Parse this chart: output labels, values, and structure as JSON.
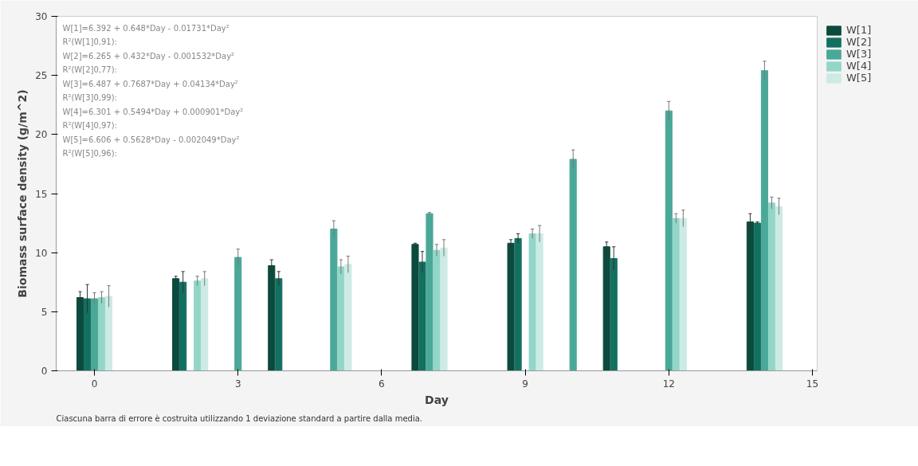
{
  "chart_data": {
    "type": "bar",
    "xlabel": "Day",
    "ylabel": "Biomass surface density (g/m^2)",
    "xlim": [
      -0.8,
      15.1
    ],
    "ylim": [
      0,
      30
    ],
    "xticks": [
      0,
      3,
      6,
      9,
      12,
      15
    ],
    "yticks": [
      0,
      5,
      10,
      15,
      20,
      25,
      30
    ],
    "grid": false,
    "legend": "right",
    "series": [
      {
        "name": "W[1]",
        "color": "#0b4a3c",
        "x": [
          0,
          2,
          4,
          7,
          9,
          11,
          14
        ],
        "values": [
          6.2,
          7.8,
          8.9,
          10.7,
          10.8,
          10.5,
          12.6
        ],
        "errors": [
          0.5,
          0.2,
          0.5,
          0.1,
          0.3,
          0.4,
          0.7
        ]
      },
      {
        "name": "W[2]",
        "color": "#137060",
        "x": [
          0,
          2,
          4,
          7,
          9,
          11,
          14
        ],
        "values": [
          6.1,
          7.5,
          7.8,
          9.2,
          11.2,
          9.5,
          12.5
        ],
        "errors": [
          1.2,
          0.9,
          0.6,
          0.9,
          0.4,
          1.0,
          0.1
        ]
      },
      {
        "name": "W[3]",
        "color": "#4aa898",
        "x": [
          0,
          3,
          5,
          7,
          10,
          12,
          14
        ],
        "values": [
          6.1,
          9.6,
          12.0,
          13.3,
          17.9,
          22.0,
          25.4
        ],
        "errors": [
          0.5,
          0.7,
          0.7,
          0.1,
          0.8,
          0.8,
          0.8
        ]
      },
      {
        "name": "W[4]",
        "color": "#92d6c8",
        "x": [
          0,
          2,
          5,
          7,
          9,
          12,
          14
        ],
        "values": [
          6.2,
          7.6,
          8.8,
          10.2,
          11.6,
          12.9,
          14.2
        ],
        "errors": [
          0.5,
          0.4,
          0.6,
          0.5,
          0.4,
          0.4,
          0.5
        ]
      },
      {
        "name": "W[5]",
        "color": "#cdeae4",
        "x": [
          0,
          2,
          5,
          7,
          9,
          12,
          14
        ],
        "values": [
          6.3,
          7.8,
          9.0,
          10.4,
          11.6,
          12.9,
          13.9
        ],
        "errors": [
          0.9,
          0.6,
          0.7,
          0.7,
          0.7,
          0.7,
          0.7
        ]
      }
    ],
    "annotations": [
      "W[1]=6.392 + 0.648*Day - 0.01731*Day²",
      "R²(W[1]0,91):",
      "W[2]=6.265 + 0.432*Day - 0.001532*Day²",
      "R²(W[2]0,77):",
      "W[3]=6.487 + 0.7687*Day + 0.04134*Day²",
      "R²(W[3]0,99):",
      "W[4]=6.301 + 0.5494*Day + 0.000901*Day²",
      "R²(W[4]0,97):",
      "W[5]=6.606 + 0.5628*Day - 0.002049*Day²",
      "R²(W[5]0,96):",
      "Ciascuna barra di errore è costruita utilizzando 1 deviazione standard a partire dalla media."
    ]
  }
}
